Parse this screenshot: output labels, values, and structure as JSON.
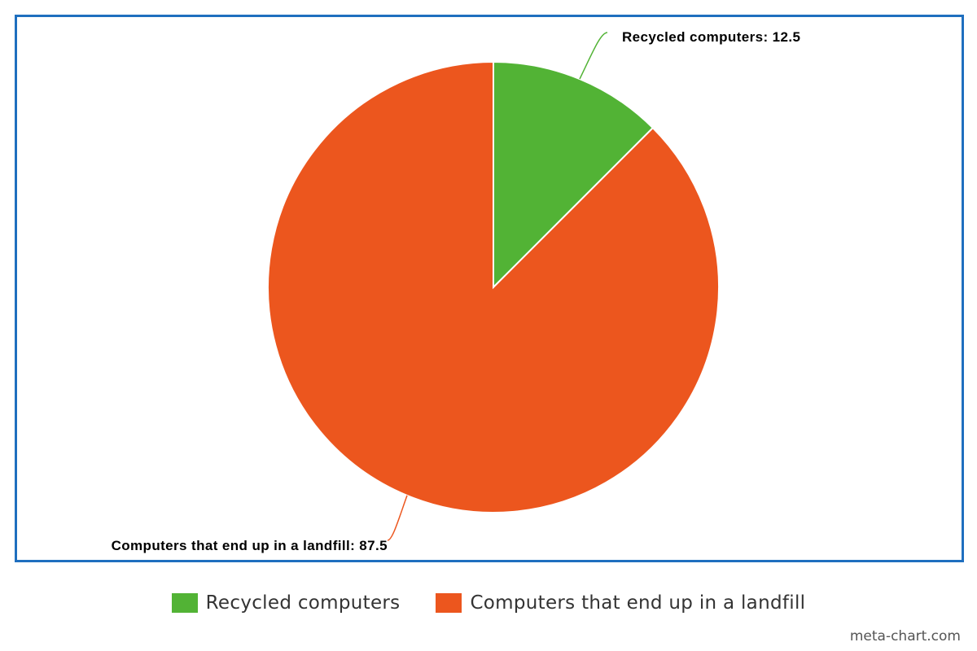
{
  "chart_data": {
    "type": "pie",
    "slices": [
      {
        "name": "Recycled computers",
        "value": 12.5,
        "color": "#52b335",
        "label": "Recycled computers: 12.5"
      },
      {
        "name": "Computers that end up in a landfill",
        "value": 87.5,
        "color": "#ec561e",
        "label": "Computers that end up in a landfill: 87.5"
      }
    ],
    "legend": {
      "position": "bottom"
    },
    "frame_color": "#1f6fbf"
  },
  "credit": "meta-chart.com"
}
